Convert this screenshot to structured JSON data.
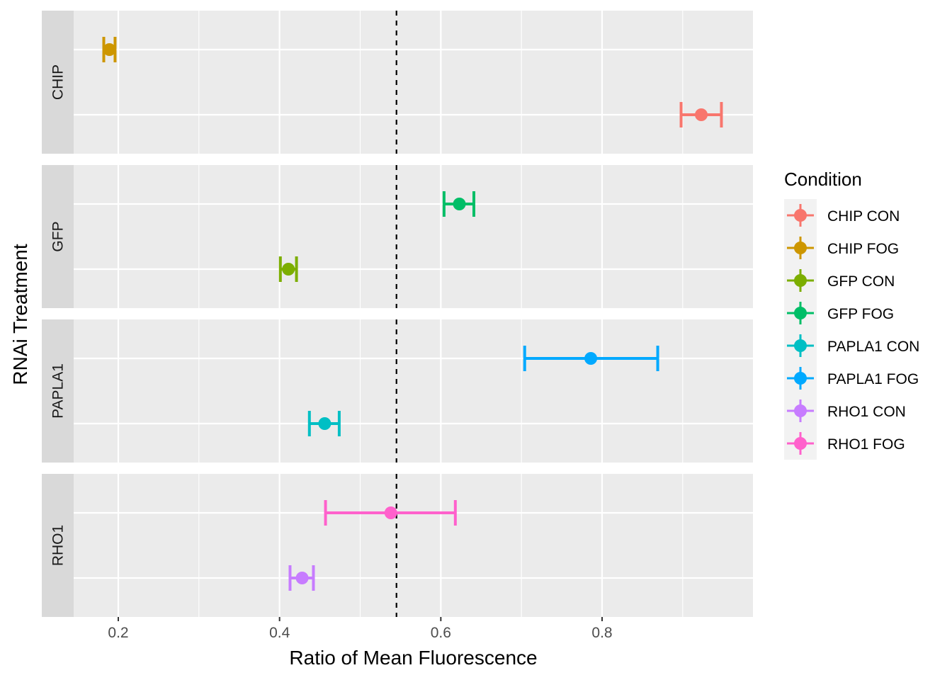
{
  "chart_data": {
    "type": "scatter",
    "subtype": "point with horizontal error bars, faceted rows",
    "xlabel": "Ratio of Mean Fluorescence",
    "ylabel": "RNAi Treatment",
    "xlim": [
      0.14,
      0.96
    ],
    "x_ticks": [
      {
        "value": 0.2,
        "label": "0.2"
      },
      {
        "value": 0.4,
        "label": "0.4"
      },
      {
        "value": 0.6,
        "label": "0.6"
      },
      {
        "value": 0.8,
        "label": "0.8"
      }
    ],
    "reference_line": {
      "x": 0.545,
      "style": "dashed",
      "color": "#000000"
    },
    "grid": true,
    "legend": {
      "title": "Condition",
      "placement": "right",
      "entries": [
        {
          "label": "CHIP CON",
          "color": "#F8766D"
        },
        {
          "label": "CHIP FOG",
          "color": "#CD9600"
        },
        {
          "label": "GFP CON",
          "color": "#7CAE00"
        },
        {
          "label": "GFP FOG",
          "color": "#00BE67"
        },
        {
          "label": "PAPLA1 CON",
          "color": "#00BFC4"
        },
        {
          "label": "PAPLA1 FOG",
          "color": "#00A9FF"
        },
        {
          "label": "RHO1 CON",
          "color": "#C77CFF"
        },
        {
          "label": "RHO1 FOG",
          "color": "#FF61CC"
        }
      ]
    },
    "facets": [
      {
        "label": "CHIP",
        "points": [
          {
            "condition": "CHIP CON",
            "level": 1,
            "x": 0.923,
            "xmin": 0.898,
            "xmax": 0.948,
            "color": "#F8766D"
          },
          {
            "condition": "CHIP FOG",
            "level": 2,
            "x": 0.189,
            "xmin": 0.182,
            "xmax": 0.196,
            "color": "#CD9600"
          }
        ]
      },
      {
        "label": "GFP",
        "points": [
          {
            "condition": "GFP CON",
            "level": 1,
            "x": 0.411,
            "xmin": 0.401,
            "xmax": 0.421,
            "color": "#7CAE00"
          },
          {
            "condition": "GFP FOG",
            "level": 2,
            "x": 0.623,
            "xmin": 0.604,
            "xmax": 0.641,
            "color": "#00BE67"
          }
        ]
      },
      {
        "label": "PAPLA1",
        "points": [
          {
            "condition": "PAPLA1 CON",
            "level": 1,
            "x": 0.456,
            "xmin": 0.437,
            "xmax": 0.474,
            "color": "#00BFC4"
          },
          {
            "condition": "PAPLA1 FOG",
            "level": 2,
            "x": 0.786,
            "xmin": 0.704,
            "xmax": 0.869,
            "color": "#00A9FF"
          }
        ]
      },
      {
        "label": "RHO1",
        "points": [
          {
            "condition": "RHO1 CON",
            "level": 1,
            "x": 0.428,
            "xmin": 0.413,
            "xmax": 0.442,
            "color": "#C77CFF"
          },
          {
            "condition": "RHO1 FOG",
            "level": 2,
            "x": 0.538,
            "xmin": 0.457,
            "xmax": 0.618,
            "color": "#FF61CC"
          }
        ]
      }
    ]
  }
}
